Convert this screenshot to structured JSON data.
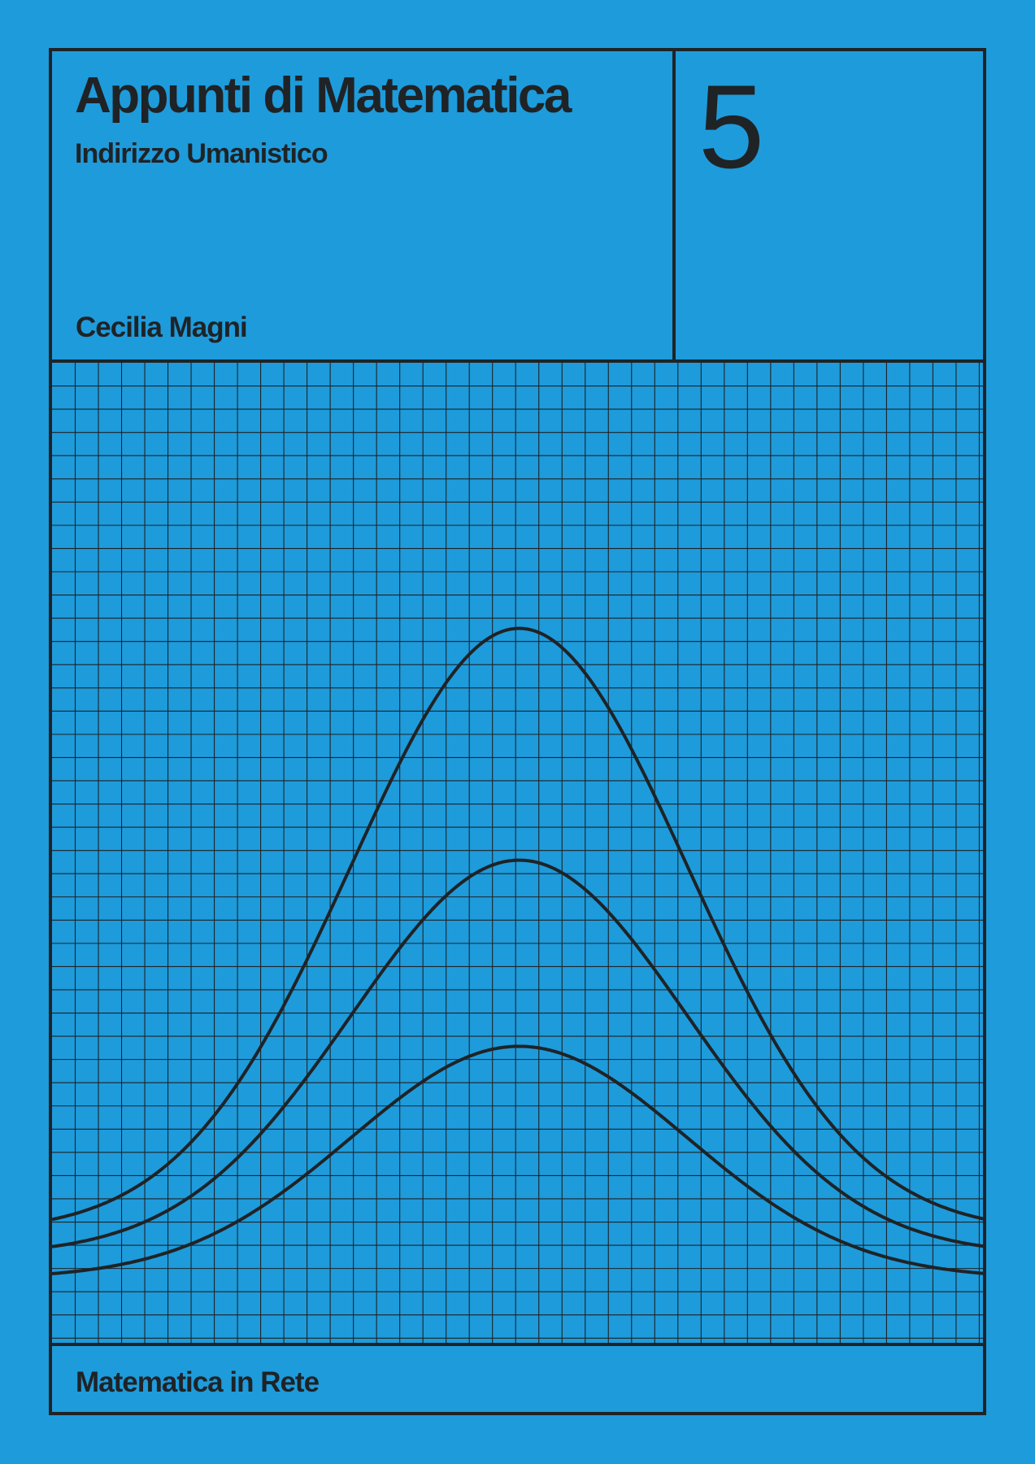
{
  "cover": {
    "title": "Appunti di Matematica",
    "subtitle": "Indirizzo Umanistico",
    "author": "Cecilia Magni",
    "volume": "5",
    "publisher": "Matematica in Rete"
  },
  "colors": {
    "background": "#1e9bdb",
    "ink": "#1f2326"
  },
  "artwork": {
    "type": "graph-paper with three bell curves",
    "grid_columns": 40,
    "grid_rows": 42,
    "curve_heights_in_grid_squares": [
      26,
      17,
      10
    ]
  }
}
